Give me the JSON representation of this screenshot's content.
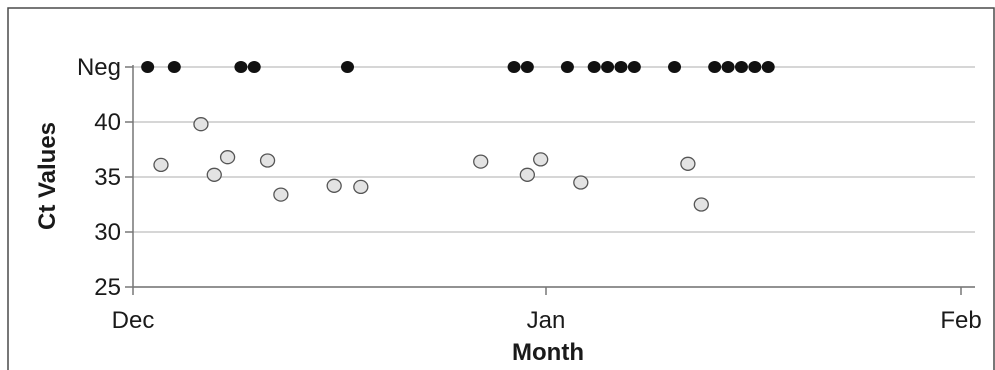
{
  "chart_data": {
    "type": "scatter",
    "title": "",
    "xlabel": "Month",
    "ylabel": "Ct Values",
    "x_ticks": [
      "Dec",
      "Jan",
      "Feb"
    ],
    "x_range_days": [
      0,
      62
    ],
    "y_ticks": [
      "25",
      "30",
      "35",
      "40",
      "Neg"
    ],
    "y_range": [
      25,
      45
    ],
    "neg_plot_value": 45,
    "grid": true,
    "legend": "none",
    "colors": {
      "negative": "#111111",
      "positive_fill": "#e3e3e3",
      "positive_stroke": "#555555",
      "grid": "#c8c8c8",
      "axis": "#777777"
    },
    "series": [
      {
        "kind": "negative",
        "x_days": [
          1.1,
          3.1,
          8.1,
          9.1,
          16.1,
          28.6,
          29.6,
          32.6,
          34.6,
          35.6,
          36.6,
          37.6,
          40.6,
          43.6,
          44.6,
          45.6,
          46.6,
          47.6
        ],
        "values": [
          "Neg",
          "Neg",
          "Neg",
          "Neg",
          "Neg",
          "Neg",
          "Neg",
          "Neg",
          "Neg",
          "Neg",
          "Neg",
          "Neg",
          "Neg",
          "Neg",
          "Neg",
          "Neg",
          "Neg",
          "Neg"
        ]
      },
      {
        "kind": "positive",
        "x_days": [
          2.1,
          5.1,
          6.1,
          7.1,
          10.1,
          11.1,
          15.1,
          17.1,
          26.1,
          29.6,
          30.6,
          33.6,
          41.6,
          42.6
        ],
        "values": [
          36.1,
          39.8,
          35.2,
          36.8,
          36.5,
          33.4,
          34.2,
          34.1,
          36.4,
          35.2,
          36.6,
          34.5,
          36.2,
          32.5
        ]
      }
    ]
  }
}
